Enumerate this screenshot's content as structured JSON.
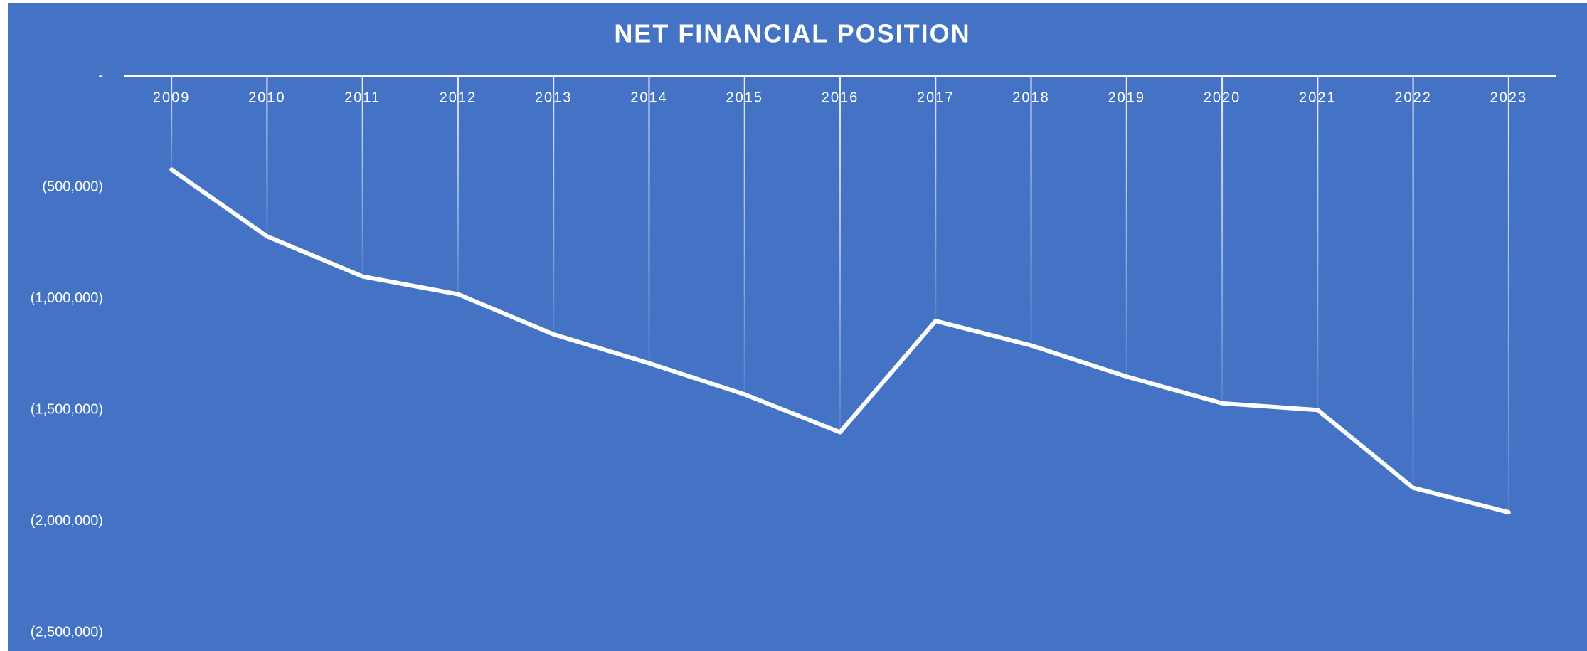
{
  "chart_data": {
    "type": "line",
    "title": "NET FINANCIAL POSITION",
    "categories": [
      "2009",
      "2010",
      "2011",
      "2012",
      "2013",
      "2014",
      "2015",
      "2016",
      "2017",
      "2018",
      "2019",
      "2020",
      "2021",
      "2022",
      "2023"
    ],
    "series": [
      {
        "name": "Net Financial Position",
        "color": "#ffffff",
        "values": [
          -420000,
          -720000,
          -900000,
          -980000,
          -1160000,
          -1290000,
          -1430000,
          -1600000,
          -1100000,
          -1210000,
          -1350000,
          -1470000,
          -1500000,
          -1850000,
          -1960000
        ]
      }
    ],
    "ylim": [
      -2500000,
      0
    ],
    "yticks": [
      {
        "value": 0,
        "label": "-"
      },
      {
        "value": -500000,
        "label": "(500,000)"
      },
      {
        "value": -1000000,
        "label": "(1,000,000)"
      },
      {
        "value": -1500000,
        "label": "(1,500,000)"
      },
      {
        "value": -2000000,
        "label": "(2,000,000)"
      },
      {
        "value": -2500000,
        "label": "(2,500,000)"
      }
    ]
  }
}
